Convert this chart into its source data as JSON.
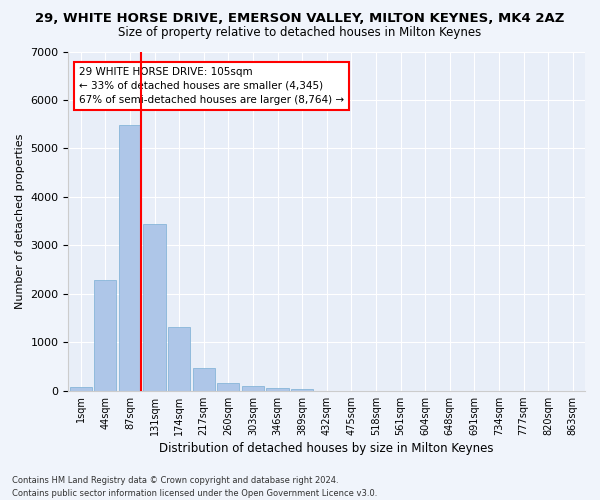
{
  "title": "29, WHITE HORSE DRIVE, EMERSON VALLEY, MILTON KEYNES, MK4 2AZ",
  "subtitle": "Size of property relative to detached houses in Milton Keynes",
  "xlabel": "Distribution of detached houses by size in Milton Keynes",
  "ylabel": "Number of detached properties",
  "bar_color": "#aec6e8",
  "bar_edge_color": "#7aafd4",
  "background_color": "#e8eef8",
  "grid_color": "#ffffff",
  "categories": [
    "1sqm",
    "44sqm",
    "87sqm",
    "131sqm",
    "174sqm",
    "217sqm",
    "260sqm",
    "303sqm",
    "346sqm",
    "389sqm",
    "432sqm",
    "475sqm",
    "518sqm",
    "561sqm",
    "604sqm",
    "648sqm",
    "691sqm",
    "734sqm",
    "777sqm",
    "820sqm",
    "863sqm"
  ],
  "values": [
    75,
    2280,
    5480,
    3450,
    1310,
    460,
    160,
    95,
    60,
    40,
    0,
    0,
    0,
    0,
    0,
    0,
    0,
    0,
    0,
    0,
    0
  ],
  "ylim": [
    0,
    7000
  ],
  "yticks": [
    0,
    1000,
    2000,
    3000,
    4000,
    5000,
    6000,
    7000
  ],
  "property_label": "29 WHITE HORSE DRIVE: 105sqm",
  "pct_smaller": "33%",
  "n_smaller": "4,345",
  "pct_larger": "67%",
  "n_larger": "8,764",
  "vline_bin_index": 2,
  "footer_line1": "Contains HM Land Registry data © Crown copyright and database right 2024.",
  "footer_line2": "Contains public sector information licensed under the Open Government Licence v3.0."
}
